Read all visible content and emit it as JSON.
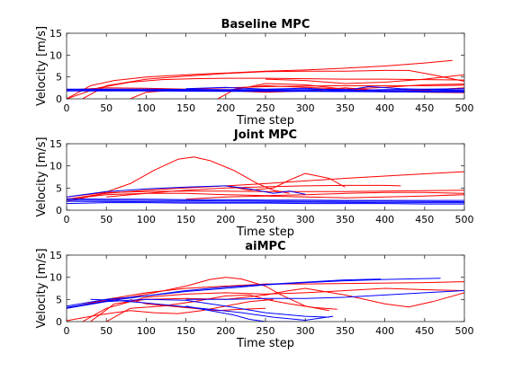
{
  "figure": {
    "background": "#ffffff"
  },
  "chart_data": [
    {
      "type": "line",
      "title": "Baseline MPC",
      "xlabel": "Time step",
      "ylabel": "Velocity [m/s]",
      "xlim": [
        0,
        500
      ],
      "ylim": [
        0,
        15
      ],
      "xticks": [
        0,
        50,
        100,
        150,
        200,
        250,
        300,
        350,
        400,
        450,
        500
      ],
      "yticks": [
        0,
        5,
        10,
        15
      ],
      "grid": false,
      "series_colors": {
        "red": "#ff0000",
        "blue": "#0000ff"
      },
      "series": [
        {
          "color": "red",
          "x": [
            0,
            30,
            60,
            100,
            150,
            200,
            250,
            300,
            350,
            400,
            450,
            485
          ],
          "y": [
            0,
            3,
            4.2,
            5,
            5.5,
            5.9,
            6.3,
            6.6,
            7,
            7.5,
            8.2,
            8.8
          ]
        },
        {
          "color": "red",
          "x": [
            0,
            40,
            80,
            120,
            160,
            200,
            250,
            300,
            350,
            400,
            450,
            500
          ],
          "y": [
            0,
            2.5,
            3.8,
            4.4,
            4.6,
            4.7,
            4.7,
            4.6,
            4.5,
            4.5,
            4.4,
            4.3
          ]
        },
        {
          "color": "red",
          "x": [
            20,
            50,
            100,
            150,
            200,
            250,
            300,
            350,
            400,
            430,
            460,
            500
          ],
          "y": [
            0,
            3,
            4.5,
            5.2,
            5.8,
            6.2,
            6.3,
            6.3,
            6.5,
            6.5,
            5.5,
            4
          ]
        },
        {
          "color": "red",
          "x": [
            80,
            100,
            150,
            200,
            250,
            300,
            350,
            400,
            450,
            500
          ],
          "y": [
            0,
            1.5,
            2.2,
            2.5,
            2.8,
            2.9,
            3,
            3,
            3,
            3.1
          ]
        },
        {
          "color": "red",
          "x": [
            190,
            210,
            250,
            300,
            350,
            400,
            450,
            500
          ],
          "y": [
            0,
            2,
            3.5,
            3.2,
            2.2,
            1.8,
            2,
            2.5
          ]
        },
        {
          "color": "red",
          "x": [
            250,
            300,
            350,
            400,
            450,
            500
          ],
          "y": [
            4.5,
            4.2,
            3.5,
            3.8,
            4.5,
            5.5
          ]
        },
        {
          "color": "red",
          "x": [
            0,
            50,
            100,
            150,
            200,
            220,
            250,
            300,
            350,
            400,
            450,
            500
          ],
          "y": [
            2,
            2.5,
            2.4,
            2.2,
            1.8,
            2.5,
            3,
            2.6,
            2.2,
            2.6,
            3.2,
            3.4
          ]
        },
        {
          "color": "red",
          "x": [
            100,
            150,
            200,
            250,
            300,
            350,
            400,
            450,
            500
          ],
          "y": [
            2,
            2,
            1.9,
            1.5,
            1.8,
            2.5,
            1.8,
            1.5,
            1.4
          ]
        },
        {
          "color": "blue",
          "x": [
            0,
            100,
            200,
            300,
            400,
            500
          ],
          "y": [
            2.1,
            2,
            2,
            1.9,
            1.9,
            1.8
          ]
        },
        {
          "color": "blue",
          "x": [
            0,
            100,
            200,
            300,
            400,
            500
          ],
          "y": [
            2,
            1.9,
            1.8,
            1.8,
            1.7,
            1.7
          ]
        },
        {
          "color": "blue",
          "x": [
            0,
            100,
            200,
            300,
            400,
            500
          ],
          "y": [
            1.8,
            1.8,
            1.7,
            1.7,
            1.6,
            1.5
          ]
        },
        {
          "color": "blue",
          "x": [
            0,
            100,
            200,
            300,
            360,
            380,
            420,
            460,
            500
          ],
          "y": [
            2.2,
            2.2,
            2.1,
            2.1,
            2.2,
            2.8,
            2.3,
            2.1,
            2
          ]
        },
        {
          "color": "blue",
          "x": [
            150,
            200,
            250,
            300,
            350,
            400,
            450,
            500
          ],
          "y": [
            2.3,
            2.6,
            2.2,
            2.4,
            1.9,
            2.1,
            2.2,
            2.3
          ]
        }
      ]
    },
    {
      "type": "line",
      "title": "Joint MPC",
      "xlabel": "Time step",
      "ylabel": "Velocity [m/s]",
      "xlim": [
        0,
        500
      ],
      "ylim": [
        0,
        15
      ],
      "xticks": [
        0,
        50,
        100,
        150,
        200,
        250,
        300,
        350,
        400,
        450,
        500
      ],
      "yticks": [
        0,
        5,
        10,
        15
      ],
      "grid": false,
      "series_colors": {
        "red": "#ff0000",
        "blue": "#0000ff"
      },
      "series": [
        {
          "color": "red",
          "x": [
            0,
            40,
            80,
            110,
            140,
            160,
            180,
            210,
            240,
            260,
            280
          ],
          "y": [
            2,
            3.5,
            6,
            9,
            11.5,
            12,
            11.2,
            9,
            6,
            4.5,
            3.8
          ]
        },
        {
          "color": "red",
          "x": [
            0,
            50,
            100,
            150,
            200,
            250,
            300,
            350,
            400,
            450,
            500
          ],
          "y": [
            2.5,
            3.8,
            4.5,
            5,
            5.5,
            6,
            6.6,
            7.2,
            7.7,
            8.2,
            8.7
          ]
        },
        {
          "color": "red",
          "x": [
            50,
            100,
            150,
            200,
            250,
            300,
            350,
            400,
            420
          ],
          "y": [
            3,
            3.8,
            4.5,
            5,
            5.3,
            5.5,
            5.6,
            5.6,
            5.5
          ]
        },
        {
          "color": "red",
          "x": [
            200,
            230,
            260,
            280,
            300,
            330,
            350
          ],
          "y": [
            5.5,
            4.5,
            5,
            6.8,
            8.3,
            7.2,
            5.2
          ]
        },
        {
          "color": "red",
          "x": [
            0,
            50,
            100,
            150,
            200,
            250,
            300,
            350,
            400,
            450,
            500
          ],
          "y": [
            2.5,
            3.5,
            3.8,
            3.8,
            3.5,
            3.3,
            3.5,
            3.8,
            4,
            4,
            3.8
          ]
        },
        {
          "color": "red",
          "x": [
            0,
            50,
            100,
            150,
            200,
            250,
            300,
            350,
            400,
            450,
            500
          ],
          "y": [
            3,
            4,
            4.2,
            4.3,
            4.3,
            4.2,
            4.2,
            4.2,
            4.3,
            4.4,
            4.5
          ]
        },
        {
          "color": "red",
          "x": [
            150,
            200,
            250,
            300,
            350,
            400,
            450,
            500
          ],
          "y": [
            2.5,
            3,
            3.2,
            3,
            2.8,
            3,
            3.2,
            3.5
          ]
        },
        {
          "color": "blue",
          "x": [
            0,
            100,
            200,
            300,
            400,
            500
          ],
          "y": [
            2.3,
            2.2,
            2.1,
            2,
            2,
            1.9
          ]
        },
        {
          "color": "blue",
          "x": [
            0,
            100,
            200,
            300,
            400,
            500
          ],
          "y": [
            2,
            1.9,
            1.8,
            1.8,
            1.7,
            1.7
          ]
        },
        {
          "color": "blue",
          "x": [
            0,
            50,
            100,
            150,
            200,
            250,
            300,
            350,
            400,
            500
          ],
          "y": [
            2.6,
            2.5,
            2.5,
            2.4,
            2.4,
            2.3,
            2.3,
            2.2,
            2.2,
            2.2
          ]
        },
        {
          "color": "blue",
          "x": [
            0,
            50,
            100,
            150,
            200,
            230,
            260,
            280,
            300
          ],
          "y": [
            3,
            4.2,
            4.8,
            5.2,
            5.5,
            4.8,
            3.8,
            4.3,
            3.6
          ]
        },
        {
          "color": "blue",
          "x": [
            0,
            50,
            100,
            150,
            200,
            250,
            300,
            350,
            400,
            450,
            500
          ],
          "y": [
            1.5,
            1.7,
            1.7,
            1.6,
            1.6,
            1.6,
            1.5,
            1.5,
            1.5,
            1.4,
            1.4
          ]
        }
      ]
    },
    {
      "type": "line",
      "title": "aiMPC",
      "xlabel": "Time step",
      "ylabel": "Velocity [m/s]",
      "xlim": [
        0,
        500
      ],
      "ylim": [
        0,
        15
      ],
      "xticks": [
        0,
        50,
        100,
        150,
        200,
        250,
        300,
        350,
        400,
        450,
        500
      ],
      "yticks": [
        0,
        5,
        10,
        15
      ],
      "grid": false,
      "series_colors": {
        "red": "#ff0000",
        "blue": "#0000ff"
      },
      "series": [
        {
          "color": "red",
          "x": [
            0,
            40,
            80,
            110,
            150,
            180,
            200,
            220,
            250,
            270,
            300,
            330
          ],
          "y": [
            3,
            4.5,
            5.5,
            6.5,
            8,
            9.5,
            10,
            9.6,
            8,
            6,
            3.5,
            2.5
          ]
        },
        {
          "color": "red",
          "x": [
            0,
            50,
            100,
            150,
            200,
            250,
            300,
            350,
            400,
            450,
            500
          ],
          "y": [
            3,
            5,
            6.5,
            7.5,
            8,
            8.5,
            8.5,
            8.6,
            8.7,
            8.8,
            9
          ]
        },
        {
          "color": "red",
          "x": [
            20,
            50,
            100,
            150,
            200,
            250,
            300,
            350,
            400,
            450,
            500
          ],
          "y": [
            0,
            3,
            5.5,
            6.2,
            6.5,
            6.2,
            6.5,
            7,
            7.5,
            7.2,
            7
          ]
        },
        {
          "color": "red",
          "x": [
            30,
            60,
            100,
            150,
            200,
            250,
            280,
            300,
            350,
            400,
            430,
            460,
            500
          ],
          "y": [
            0,
            4,
            5,
            5.2,
            5,
            6,
            7,
            7.5,
            6,
            4,
            3.3,
            4.5,
            6.5
          ]
        },
        {
          "color": "red",
          "x": [
            50,
            80,
            120,
            160,
            200,
            230,
            250,
            280,
            310,
            340
          ],
          "y": [
            0,
            3,
            3.5,
            4.5,
            5.8,
            6,
            5,
            4,
            3.2,
            2.8
          ]
        },
        {
          "color": "red",
          "x": [
            0,
            40,
            80,
            110,
            140,
            170,
            200,
            230,
            260
          ],
          "y": [
            0.2,
            1.5,
            2.5,
            2,
            1.8,
            2.5,
            3.5,
            4.5,
            5
          ]
        },
        {
          "color": "red",
          "x": [
            80,
            100,
            130,
            160,
            190,
            220,
            250
          ],
          "y": [
            5,
            4,
            3.5,
            3,
            2.5,
            2.8,
            3
          ]
        },
        {
          "color": "blue",
          "x": [
            0,
            50,
            100,
            150,
            200,
            250,
            300,
            350,
            400,
            450,
            470
          ],
          "y": [
            3.5,
            5,
            5.8,
            6.8,
            7.5,
            8.3,
            8.8,
            9.2,
            9.5,
            9.7,
            9.8
          ]
        },
        {
          "color": "blue",
          "x": [
            0,
            50,
            100,
            150,
            200,
            250,
            300,
            350,
            395
          ],
          "y": [
            3.2,
            4.6,
            5.8,
            7,
            7.8,
            8.4,
            8.9,
            9.4,
            9.6
          ]
        },
        {
          "color": "blue",
          "x": [
            0,
            50,
            100,
            150,
            200,
            250,
            300,
            330
          ],
          "y": [
            3,
            4.5,
            5,
            4.8,
            3.5,
            2,
            1.2,
            1
          ]
        },
        {
          "color": "blue",
          "x": [
            30,
            60,
            100,
            140,
            180,
            220,
            260,
            300,
            335
          ],
          "y": [
            5,
            4.8,
            4.2,
            3.5,
            2.8,
            2,
            1,
            0.3,
            1.2
          ]
        },
        {
          "color": "blue",
          "x": [
            150,
            180,
            210,
            230,
            250,
            270,
            300
          ],
          "y": [
            3.5,
            2.5,
            1.5,
            0.5,
            0,
            0,
            0
          ]
        },
        {
          "color": "blue",
          "x": [
            150,
            200,
            250,
            300,
            350,
            400,
            450,
            500
          ],
          "y": [
            5,
            5,
            5.2,
            5.2,
            5.5,
            6,
            6.5,
            7
          ]
        }
      ]
    }
  ]
}
